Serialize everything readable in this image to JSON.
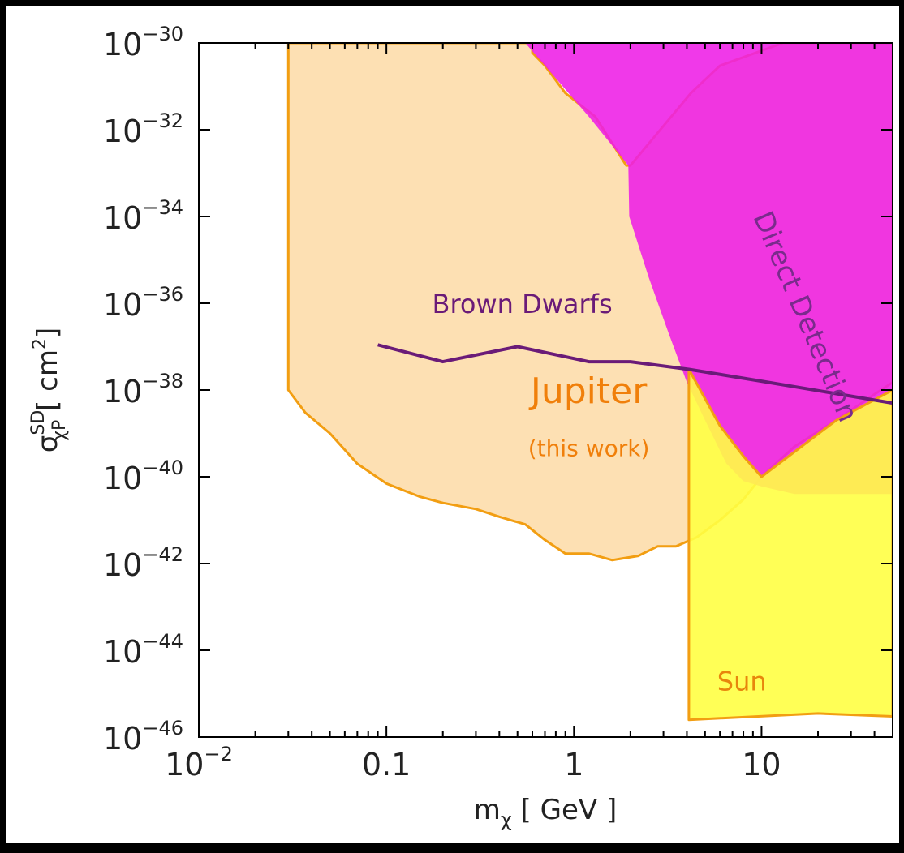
{
  "chart_data": {
    "type": "area",
    "x_scale": "log",
    "y_scale": "log",
    "xlim": [
      0.01,
      50
    ],
    "ylim": [
      1e-46,
      1e-30
    ],
    "xlabel": {
      "main": "m",
      "sub": "χ",
      "unit": " [ GeV ]"
    },
    "ylabel": {
      "main": "σ",
      "sup": "SD",
      "sub": "χP",
      "unit": " [ cm",
      "unit_sup": "2",
      "unit_close": "]"
    },
    "x_ticks": [
      {
        "value": 0.01,
        "base": "10",
        "exp": "−2"
      },
      {
        "value": 0.1,
        "text": "0.1"
      },
      {
        "value": 1,
        "text": "1"
      },
      {
        "value": 10,
        "text": "10"
      }
    ],
    "y_ticks": [
      {
        "value": 1e-30,
        "base": "10",
        "exp": "−30"
      },
      {
        "value": 1e-32,
        "base": "10",
        "exp": "−32"
      },
      {
        "value": 1e-34,
        "base": "10",
        "exp": "−34"
      },
      {
        "value": 1e-36,
        "base": "10",
        "exp": "−36"
      },
      {
        "value": 1e-38,
        "base": "10",
        "exp": "−38"
      },
      {
        "value": 1e-40,
        "base": "10",
        "exp": "−40"
      },
      {
        "value": 1e-42,
        "base": "10",
        "exp": "−42"
      },
      {
        "value": 1e-44,
        "base": "10",
        "exp": "−44"
      },
      {
        "value": 1e-46,
        "base": "10",
        "exp": "−46"
      }
    ],
    "series": [
      {
        "name": "Jupiter",
        "sublabel": "(this work)",
        "kind": "region",
        "fill": "#fde0b3",
        "stroke": "#f29e12",
        "label_pos": {
          "x": 1.2,
          "y": 5e-39
        },
        "sublabel_pos": {
          "x": 1.2,
          "y": 3e-40
        },
        "points": [
          [
            0.03,
            1e-30
          ],
          [
            0.03,
            1e-38
          ],
          [
            0.037,
            3e-39
          ],
          [
            0.05,
            1e-39
          ],
          [
            0.07,
            2e-40
          ],
          [
            0.1,
            7e-41
          ],
          [
            0.15,
            3.5e-41
          ],
          [
            0.2,
            2.5e-41
          ],
          [
            0.3,
            1.8e-41
          ],
          [
            0.4,
            1.2e-41
          ],
          [
            0.55,
            8e-42
          ],
          [
            0.7,
            3.5e-42
          ],
          [
            0.9,
            1.7e-42
          ],
          [
            1.2,
            1.7e-42
          ],
          [
            1.6,
            1.2e-42
          ],
          [
            2.2,
            1.5e-42
          ],
          [
            2.8,
            2.5e-42
          ],
          [
            3.5,
            2.5e-42
          ],
          [
            4.5,
            4e-42
          ],
          [
            6,
            1e-41
          ],
          [
            8,
            3e-41
          ],
          [
            10,
            1e-40
          ],
          [
            15,
            5e-40
          ],
          [
            25,
            2e-39
          ],
          [
            40,
            8e-39
          ],
          [
            50,
            1.5e-38
          ],
          [
            50,
            1e-30
          ],
          [
            13,
            1e-30
          ],
          [
            6,
            3e-31
          ],
          [
            4.2,
            7e-32
          ],
          [
            2,
            1.5e-33
          ],
          [
            1.9,
            1.5e-33
          ],
          [
            1.3,
            2e-32
          ],
          [
            0.9,
            7e-32
          ],
          [
            0.7,
            3e-31
          ],
          [
            0.6,
            6e-31
          ],
          [
            0.6,
            1e-30
          ]
        ]
      },
      {
        "name": "Direct Detection",
        "kind": "region",
        "fill": "#ee1ee6",
        "opacity": 0.88,
        "label_pos": {
          "x": 9,
          "y": 1e-34
        },
        "points": [
          [
            0.3,
            1e-30
          ],
          [
            0.55,
            1e-30
          ],
          [
            0.7,
            3e-31
          ],
          [
            1.2,
            2e-32
          ],
          [
            1.95,
            1.5e-33
          ],
          [
            1.97,
            1e-34
          ],
          [
            2.5,
            4e-36
          ],
          [
            3.2,
            2e-37
          ],
          [
            4,
            1.5e-38
          ],
          [
            5,
            2e-39
          ],
          [
            6.5,
            2e-40
          ],
          [
            8,
            8e-41
          ],
          [
            10,
            6e-41
          ],
          [
            15,
            4e-41
          ],
          [
            50,
            4e-41
          ],
          [
            50,
            1e-30
          ]
        ]
      },
      {
        "name": "Sun",
        "kind": "region",
        "fill": "#ffff44",
        "opacity": 0.9,
        "stroke": "#f29e12",
        "label_pos": {
          "x": 5.8,
          "y": 1.2e-45
        },
        "points": [
          [
            4.1,
            3e-38
          ],
          [
            4.1,
            2.5e-46
          ],
          [
            20,
            3.5e-46
          ],
          [
            50,
            3e-46
          ],
          [
            50,
            1e-38
          ],
          [
            25,
            2e-39
          ],
          [
            10,
            1e-40
          ],
          [
            8,
            3e-40
          ],
          [
            6,
            1.5e-39
          ]
        ]
      },
      {
        "name": "Brown Dwarfs",
        "kind": "line",
        "stroke": "#6a1b78",
        "label_pos": {
          "x": 0.53,
          "y": 6e-37
        },
        "points": [
          [
            0.09,
            1.1e-37
          ],
          [
            0.2,
            4.5e-38
          ],
          [
            0.5,
            1e-37
          ],
          [
            1.2,
            4.5e-38
          ],
          [
            2,
            4.5e-38
          ],
          [
            4.1,
            3e-38
          ],
          [
            10,
            1.6e-38
          ],
          [
            50,
            5e-39
          ]
        ]
      }
    ]
  }
}
